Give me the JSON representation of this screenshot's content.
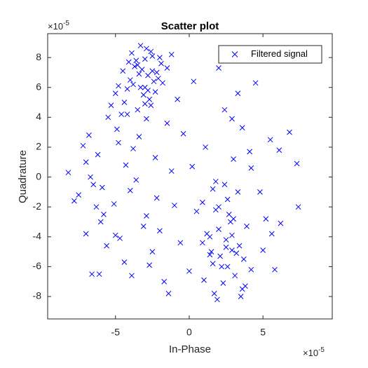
{
  "chart_data": {
    "type": "scatter",
    "title": "Scatter plot",
    "x_label": "In-Phase",
    "y_label": "Quadrature",
    "x_multiplier": {
      "base": "×10",
      "exponent": "-5"
    },
    "y_multiplier": {
      "base": "×10",
      "exponent": "-5"
    },
    "xlim": [
      -9.6,
      9.7
    ],
    "ylim": [
      -9.5,
      9.6
    ],
    "xticks": [
      -5,
      0,
      5
    ],
    "yticks": [
      -8,
      -6,
      -4,
      -2,
      0,
      2,
      4,
      6,
      8
    ],
    "grid": false,
    "legend": "top-right",
    "series": [
      {
        "name": "Filtered signal",
        "color": "#0000ff",
        "marker": "x",
        "x": [
          -3.2,
          -2.8,
          -3.5,
          -2.5,
          -4.0,
          -3.0,
          -2.2,
          -3.8,
          -2.6,
          -3.3,
          -4.5,
          -1.9,
          -3.1,
          -2.9,
          -3.6,
          -2.4,
          -4.2,
          -2.0,
          -3.4,
          -2.7,
          -3.9,
          -1.5,
          -4.8,
          -3.0,
          -2.3,
          -3.7,
          -2.1,
          -4.4,
          -1.2,
          -3.5,
          -2.8,
          -4.1,
          -2.6,
          -3.3,
          -1.8,
          -5.0,
          -2.5,
          -3.0,
          -4.6,
          -2.9,
          -8.2,
          -7.5,
          -6.8,
          -7.0,
          -6.2,
          -5.8,
          -5.5,
          -6.5,
          -7.2,
          -4.9,
          -5.1,
          -4.3,
          -6.0,
          -3.8,
          -4.7,
          -5.3,
          -2.9,
          -3.4,
          -6.7,
          -4.0,
          -1.5,
          -2.2,
          -0.8,
          0.3,
          1.1,
          1.8,
          2.4,
          3.0,
          3.6,
          4.2,
          4.8,
          5.5,
          6.1,
          6.8,
          7.3,
          5.2,
          4.5,
          3.3,
          2.0,
          0.9,
          -0.4,
          -1.2,
          -2.5,
          -3.1,
          -4.4,
          -5.6,
          -6.3,
          -7.8,
          -7.0,
          -6.1,
          -5.0,
          -3.9,
          -2.7,
          -1.7,
          -0.6,
          0.5,
          1.4,
          2.6,
          3.8,
          5.0,
          6.2,
          7.4,
          5.8,
          4.1,
          2.9,
          1.6,
          0.2,
          -1.0,
          -2.3,
          -3.6,
          -4.8,
          -5.9,
          -4.2,
          -2.0,
          0.0,
          1.9,
          3.5,
          5.6,
          -6.6,
          -1.4,
          2.0,
          2.5,
          3.0,
          1.5,
          3.4,
          2.8,
          1.8,
          3.7,
          2.2,
          2.9,
          1.2,
          3.1,
          2.6,
          0.9,
          3.9,
          2.3,
          1.6,
          2.7,
          3.3,
          2.1,
          1.0,
          3.6,
          2.4,
          2.9,
          1.4,
          3.2,
          2.0,
          4.2,
          1.7,
          2.5
        ],
        "values": [
          7.2,
          6.8,
          7.5,
          8.1,
          6.5,
          7.9,
          7.0,
          6.2,
          8.4,
          6.0,
          7.1,
          7.6,
          5.5,
          8.6,
          7.8,
          6.4,
          5.9,
          8.0,
          6.9,
          5.2,
          8.3,
          7.3,
          6.1,
          4.9,
          5.7,
          7.4,
          6.6,
          5.0,
          8.2,
          4.5,
          5.8,
          7.7,
          4.8,
          8.8,
          6.3,
          5.6,
          7.1,
          6.0,
          4.2,
          3.9,
          0.3,
          -1.2,
          2.8,
          -3.8,
          1.5,
          -2.5,
          4.0,
          -0.5,
          2.1,
          3.2,
          -1.8,
          0.8,
          -3.0,
          1.9,
          -4.1,
          4.8,
          -2.6,
          2.7,
          0.0,
          -0.9,
          3.6,
          -1.4,
          5.2,
          6.4,
          2.0,
          -0.3,
          4.5,
          1.2,
          3.3,
          0.6,
          -1.0,
          2.5,
          1.8,
          3.0,
          0.9,
          -2.8,
          6.3,
          5.6,
          7.3,
          -1.7,
          2.9,
          0.4,
          -5.0,
          -3.3,
          -5.7,
          -4.6,
          -2.0,
          -1.6,
          1.0,
          -6.5,
          -3.9,
          -6.6,
          -5.9,
          -7.0,
          -4.4,
          -2.3,
          -5.2,
          -6.0,
          -7.3,
          -4.9,
          -3.1,
          -2.0,
          -6.2,
          1.7,
          3.9,
          -0.8,
          0.7,
          -1.9,
          1.3,
          -0.2,
          2.3,
          -0.7,
          4.2,
          -3.6,
          -6.3,
          -8.2,
          -8.0,
          -3.8,
          -6.5,
          -7.8,
          -3.5,
          -4.2,
          -2.8,
          -5.0,
          -4.6,
          -3.0,
          -2.2,
          -5.5,
          -6.0,
          -4.9,
          -3.8,
          -6.6,
          -1.5,
          -4.4,
          -3.3,
          -7.1,
          -5.8,
          -2.5,
          -1.0,
          -5.3,
          -6.9,
          -7.5,
          -0.5,
          -3.9,
          -4.0,
          -5.1,
          -2.0,
          -6.2,
          -7.8,
          -4.7
        ]
      }
    ]
  }
}
